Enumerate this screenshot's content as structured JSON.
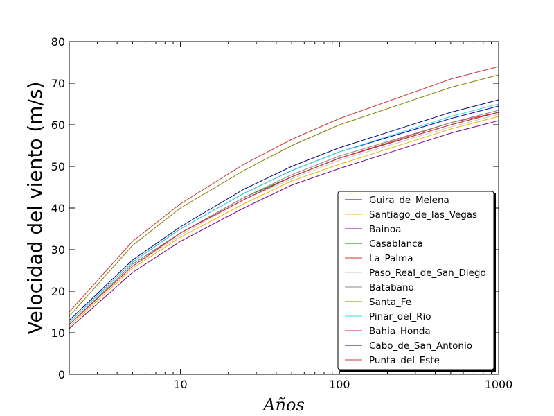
{
  "chart_data": {
    "type": "line",
    "title": "",
    "xlabel": "Años",
    "ylabel": "Velocidad del viento (m/s)",
    "xscale": "log",
    "xlim": [
      2,
      1000
    ],
    "ylim": [
      0,
      80
    ],
    "x_ticks": [
      10,
      100,
      1000
    ],
    "x_tick_labels": [
      "10",
      "100",
      "1000"
    ],
    "y_ticks": [
      0,
      10,
      20,
      30,
      40,
      50,
      60,
      70,
      80
    ],
    "y_tick_labels": [
      "0",
      "10",
      "20",
      "30",
      "40",
      "50",
      "60",
      "70",
      "80"
    ],
    "grid": false,
    "legend_position": "lower-right",
    "x": [
      2,
      5,
      10,
      25,
      50,
      100,
      500,
      1000
    ],
    "series": [
      {
        "name": "Guira_de_Melena",
        "color": "#0000cc",
        "values": [
          12.5,
          27.0,
          35.0,
          43.5,
          49.0,
          53.5,
          61.5,
          64.5
        ]
      },
      {
        "name": "Santiago_de_las_Vegas",
        "color": "#e6b800",
        "values": [
          11.5,
          25.5,
          33.0,
          41.0,
          46.5,
          50.5,
          59.0,
          62.0
        ]
      },
      {
        "name": "Bainoa",
        "color": "#800080",
        "values": [
          11.0,
          24.5,
          32.0,
          40.0,
          45.5,
          49.5,
          58.0,
          61.0
        ]
      },
      {
        "name": "Casablanca",
        "color": "#008000",
        "values": [
          12.0,
          26.5,
          34.0,
          42.5,
          47.5,
          52.0,
          60.0,
          63.0
        ]
      },
      {
        "name": "La_Palma",
        "color": "#cc3333",
        "values": [
          12.0,
          26.0,
          34.0,
          42.0,
          47.5,
          52.0,
          60.5,
          63.0
        ]
      },
      {
        "name": "Paso_Real_de_San_Diego",
        "color": "#c8c8c8",
        "values": [
          12.0,
          26.0,
          33.5,
          42.0,
          47.0,
          51.5,
          59.5,
          62.5
        ]
      },
      {
        "name": "Batabano",
        "color": "#888888",
        "values": [
          12.0,
          26.5,
          34.0,
          42.5,
          48.0,
          52.5,
          60.5,
          63.5
        ]
      },
      {
        "name": "Santa_Fe",
        "color": "#808000",
        "values": [
          14.0,
          31.0,
          40.0,
          49.0,
          55.0,
          60.0,
          69.0,
          72.0
        ]
      },
      {
        "name": "Pinar_del_Rio",
        "color": "#33dddd",
        "values": [
          12.5,
          27.0,
          35.0,
          43.5,
          49.0,
          53.5,
          62.0,
          65.0
        ]
      },
      {
        "name": "Bahia_Honda",
        "color": "#dd2244",
        "values": [
          12.0,
          26.0,
          34.0,
          42.0,
          47.5,
          52.0,
          60.0,
          63.0
        ]
      },
      {
        "name": "Cabo_de_San_Antonio",
        "color": "#000080",
        "values": [
          13.0,
          27.5,
          35.5,
          44.5,
          50.0,
          54.5,
          63.0,
          66.0
        ]
      },
      {
        "name": "Punta_del_Este",
        "color": "#cc3333",
        "values": [
          15.0,
          32.0,
          41.0,
          50.5,
          56.5,
          61.5,
          71.0,
          74.0
        ]
      }
    ]
  }
}
